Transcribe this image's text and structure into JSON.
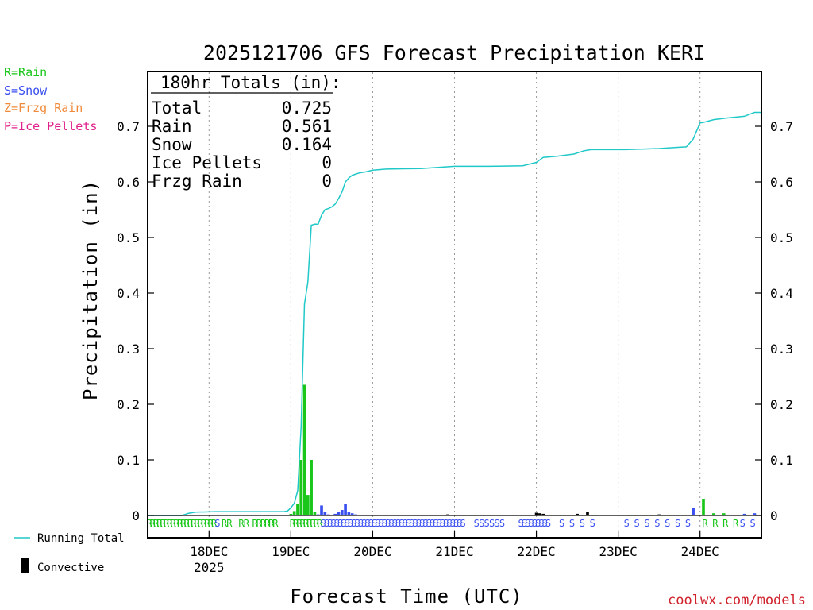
{
  "title": "2025121706 GFS Forecast Precipitation KERI",
  "ylabel": "Precipitation (in)",
  "xlabel": "Forecast Time (UTC)",
  "credit": "coolwx.com/models",
  "legend_types": [
    {
      "text": "R=Rain",
      "color": "#19c619"
    },
    {
      "text": "S=Snow",
      "color": "#3a4ff0"
    },
    {
      "text": "Z=Frzg Rain",
      "color": "#f08a3a"
    },
    {
      "text": "P=Ice Pellets",
      "color": "#e0208a"
    }
  ],
  "legend_bottom": {
    "running_total": "Running Total",
    "convective": "Convective",
    "running_total_color": "#20c8c8",
    "convective_color": "#000000"
  },
  "totals": {
    "header": "180hr Totals (in):",
    "rows": [
      {
        "label": "Total",
        "value": "0.725"
      },
      {
        "label": "Rain",
        "value": "0.561"
      },
      {
        "label": "Snow",
        "value": "0.164"
      },
      {
        "label": "Ice Pellets",
        "value": "0"
      },
      {
        "label": "Frzg Rain",
        "value": "0"
      }
    ]
  },
  "chart_data": {
    "type": "bar",
    "x_unit": "forecast hour",
    "xlim": [
      0,
      180
    ],
    "ylim": [
      0,
      0.8
    ],
    "y_ticks": [
      "0",
      "0.1",
      "0.2",
      "0.3",
      "0.4",
      "0.5",
      "0.6",
      "0.7"
    ],
    "x_ticks": [
      {
        "hour": 18,
        "label": "18DEC",
        "sub": "2025"
      },
      {
        "hour": 42,
        "label": "19DEC",
        "sub": ""
      },
      {
        "hour": 66,
        "label": "20DEC",
        "sub": ""
      },
      {
        "hour": 90,
        "label": "21DEC",
        "sub": ""
      },
      {
        "hour": 114,
        "label": "22DEC",
        "sub": ""
      },
      {
        "hour": 138,
        "label": "23DEC",
        "sub": ""
      },
      {
        "hour": 162,
        "label": "24DEC",
        "sub": ""
      }
    ],
    "grid": "vertical dotted",
    "bars": [
      {
        "hour": 42,
        "value": 0.003,
        "type": "rain"
      },
      {
        "hour": 43,
        "value": 0.008,
        "type": "rain"
      },
      {
        "hour": 44,
        "value": 0.02,
        "type": "rain"
      },
      {
        "hour": 45,
        "value": 0.1,
        "type": "rain"
      },
      {
        "hour": 46,
        "value": 0.235,
        "type": "rain"
      },
      {
        "hour": 47,
        "value": 0.037,
        "type": "rain"
      },
      {
        "hour": 48,
        "value": 0.1,
        "type": "rain"
      },
      {
        "hour": 49,
        "value": 0.006,
        "type": "rain"
      },
      {
        "hour": 50,
        "value": 0.002,
        "type": "snow"
      },
      {
        "hour": 51,
        "value": 0.018,
        "type": "snow"
      },
      {
        "hour": 52,
        "value": 0.007,
        "type": "snow"
      },
      {
        "hour": 53,
        "value": 0.002,
        "type": "snow"
      },
      {
        "hour": 54,
        "value": 0.001,
        "type": "snow"
      },
      {
        "hour": 55,
        "value": 0.003,
        "type": "snow"
      },
      {
        "hour": 56,
        "value": 0.006,
        "type": "snow"
      },
      {
        "hour": 57,
        "value": 0.01,
        "type": "snow"
      },
      {
        "hour": 58,
        "value": 0.021,
        "type": "snow"
      },
      {
        "hour": 59,
        "value": 0.007,
        "type": "snow"
      },
      {
        "hour": 60,
        "value": 0.004,
        "type": "snow"
      },
      {
        "hour": 61,
        "value": 0.002,
        "type": "snow"
      },
      {
        "hour": 62,
        "value": 0.001,
        "type": "snow"
      },
      {
        "hour": 88,
        "value": 0.002,
        "type": "convective"
      },
      {
        "hour": 114,
        "value": 0.005,
        "type": "convective"
      },
      {
        "hour": 115,
        "value": 0.004,
        "type": "convective"
      },
      {
        "hour": 116,
        "value": 0.003,
        "type": "convective"
      },
      {
        "hour": 126,
        "value": 0.003,
        "type": "convective"
      },
      {
        "hour": 129,
        "value": 0.006,
        "type": "convective"
      },
      {
        "hour": 150,
        "value": 0.002,
        "type": "convective"
      },
      {
        "hour": 160,
        "value": 0.013,
        "type": "snow"
      },
      {
        "hour": 163,
        "value": 0.03,
        "type": "rain"
      },
      {
        "hour": 166,
        "value": 0.004,
        "type": "rain"
      },
      {
        "hour": 169,
        "value": 0.004,
        "type": "rain"
      },
      {
        "hour": 175,
        "value": 0.003,
        "type": "snow"
      },
      {
        "hour": 178,
        "value": 0.004,
        "type": "snow"
      }
    ],
    "series": [
      {
        "name": "Running Total",
        "x": [
          0,
          10,
          12,
          14,
          20,
          30,
          40,
          41,
          42,
          43,
          44,
          45,
          46,
          47,
          48,
          49,
          50,
          51,
          52,
          53,
          54,
          55,
          56,
          57,
          58,
          59,
          60,
          62,
          64,
          66,
          70,
          80,
          90,
          100,
          110,
          114,
          116,
          120,
          125,
          128,
          130,
          140,
          150,
          155,
          158,
          160,
          162,
          163,
          166,
          170,
          175,
          178,
          180
        ],
        "y": [
          0,
          0,
          0.004,
          0.006,
          0.007,
          0.007,
          0.007,
          0.008,
          0.014,
          0.022,
          0.045,
          0.16,
          0.38,
          0.42,
          0.522,
          0.524,
          0.524,
          0.54,
          0.55,
          0.552,
          0.555,
          0.56,
          0.57,
          0.582,
          0.6,
          0.607,
          0.612,
          0.616,
          0.618,
          0.621,
          0.623,
          0.624,
          0.628,
          0.628,
          0.629,
          0.635,
          0.644,
          0.646,
          0.65,
          0.656,
          0.658,
          0.658,
          0.66,
          0.662,
          0.663,
          0.677,
          0.706,
          0.707,
          0.712,
          0.715,
          0.718,
          0.725,
          0.725
        ]
      }
    ],
    "ptype_labels": [
      {
        "char": "R",
        "from": 0,
        "to": 20,
        "step": 1,
        "type": "rain"
      },
      {
        "char": "S",
        "from": 20,
        "to": 21,
        "step": 1,
        "type": "snow"
      },
      {
        "char": "R",
        "from": 22,
        "to": 25,
        "step": 1.5,
        "type": "rain"
      },
      {
        "char": "R",
        "from": 27,
        "to": 30,
        "step": 1.5,
        "type": "rain"
      },
      {
        "char": "R",
        "from": 31,
        "to": 38,
        "step": 1.2,
        "type": "rain"
      },
      {
        "char": "R",
        "from": 42,
        "to": 51,
        "step": 1,
        "type": "rain"
      },
      {
        "char": "S",
        "from": 51,
        "to": 93,
        "step": 1,
        "type": "snow"
      },
      {
        "char": "S",
        "from": 96,
        "to": 105,
        "step": 1.5,
        "type": "snow"
      },
      {
        "char": "S",
        "from": 109,
        "to": 118,
        "step": 1,
        "type": "snow"
      },
      {
        "char": "S",
        "from": 121,
        "to": 133,
        "step": 3,
        "type": "snow"
      },
      {
        "char": "S",
        "from": 140,
        "to": 160,
        "step": 3,
        "type": "snow"
      },
      {
        "char": "R",
        "from": 163,
        "to": 173,
        "step": 3,
        "type": "rain"
      },
      {
        "char": "S",
        "from": 174,
        "to": 180,
        "step": 3,
        "type": "snow"
      }
    ]
  }
}
